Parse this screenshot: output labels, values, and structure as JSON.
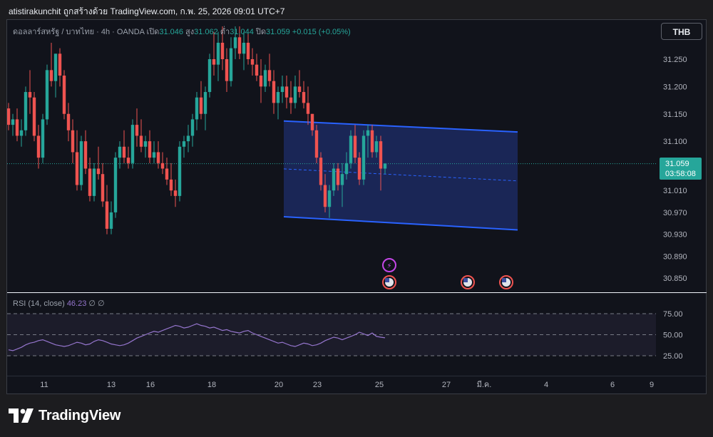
{
  "header": {
    "attribution": "atistirakunchit ถูกสร้างด้วย TradingView.com, ก.พ. 25, 2026 09:01 UTC+7"
  },
  "legend": {
    "symbol": "ดอลลาร์สหรัฐ / บาทไทย · 4h · OANDA",
    "open_label": "เปิด",
    "open": "31.046",
    "high_label": "สูง",
    "high": "31.062",
    "low_label": "ต่ำ",
    "low": "31.044",
    "close_label": "ปิด",
    "close": "31.059",
    "change": "+0.015 (+0.05%)"
  },
  "currency_button": "THB",
  "price_label": {
    "price": "31.059",
    "countdown": "03:58:08"
  },
  "rsi": {
    "name": "RSI (14, close)",
    "value": "46.23",
    "extra": "∅ ∅"
  },
  "branding": {
    "logo_text": "TradingView"
  },
  "colors": {
    "up": "#26a69a",
    "down": "#ef5350",
    "channel": "#2962ff",
    "rsi_line": "#9575cd",
    "background": "#11131b"
  },
  "chart_data": {
    "type": "candlestick",
    "y_axis": {
      "ticks": [
        "31.250",
        "31.200",
        "31.150",
        "31.100",
        "31.010",
        "30.970",
        "30.930",
        "30.890",
        "30.850"
      ],
      "range": [
        30.82,
        31.3
      ]
    },
    "x_axis": {
      "ticks": [
        "11",
        "13",
        "16",
        "18",
        "20",
        "23",
        "25",
        "27",
        "มี.ค.",
        "4",
        "6",
        "9"
      ]
    },
    "candles": [
      [
        31.16,
        31.17,
        31.12,
        31.13
      ],
      [
        31.13,
        31.15,
        31.11,
        31.14
      ],
      [
        31.14,
        31.16,
        31.1,
        31.11
      ],
      [
        31.11,
        31.14,
        31.09,
        31.12
      ],
      [
        31.12,
        31.2,
        31.11,
        31.19
      ],
      [
        31.19,
        31.23,
        31.15,
        31.18
      ],
      [
        31.18,
        31.19,
        31.1,
        31.11
      ],
      [
        31.11,
        31.13,
        31.05,
        31.07
      ],
      [
        31.07,
        31.15,
        31.06,
        31.14
      ],
      [
        31.14,
        31.24,
        31.13,
        31.23
      ],
      [
        31.23,
        31.28,
        31.2,
        31.21
      ],
      [
        31.21,
        31.26,
        31.18,
        31.26
      ],
      [
        31.26,
        31.27,
        31.2,
        31.22
      ],
      [
        31.22,
        31.23,
        31.14,
        31.15
      ],
      [
        31.15,
        31.17,
        31.1,
        31.12
      ],
      [
        31.12,
        31.14,
        31.06,
        31.08
      ],
      [
        31.08,
        31.12,
        31.01,
        31.02
      ],
      [
        31.02,
        31.11,
        31.01,
        31.1
      ],
      [
        31.1,
        31.12,
        31.04,
        31.05
      ],
      [
        31.05,
        31.07,
        30.99,
        31.0
      ],
      [
        31.0,
        31.06,
        30.99,
        31.05
      ],
      [
        31.05,
        31.09,
        31.03,
        31.04
      ],
      [
        31.04,
        31.06,
        30.98,
        30.99
      ],
      [
        30.99,
        31.02,
        30.93,
        30.94
      ],
      [
        30.94,
        30.99,
        30.93,
        30.97
      ],
      [
        30.97,
        31.08,
        30.96,
        31.07
      ],
      [
        31.07,
        31.1,
        31.05,
        31.09
      ],
      [
        31.09,
        31.12,
        31.06,
        31.07
      ],
      [
        31.07,
        31.09,
        31.05,
        31.06
      ],
      [
        31.06,
        31.14,
        31.05,
        31.13
      ],
      [
        31.13,
        31.16,
        31.09,
        31.11
      ],
      [
        31.11,
        31.14,
        31.08,
        31.09
      ],
      [
        31.09,
        31.11,
        31.07,
        31.1
      ],
      [
        31.1,
        31.12,
        31.06,
        31.07
      ],
      [
        31.07,
        31.1,
        31.06,
        31.08
      ],
      [
        31.08,
        31.1,
        31.05,
        31.06
      ],
      [
        31.06,
        31.08,
        31.04,
        31.05
      ],
      [
        31.05,
        31.07,
        31.02,
        31.03
      ],
      [
        31.03,
        31.06,
        31.0,
        31.01
      ],
      [
        31.01,
        31.03,
        30.98,
        31.0
      ],
      [
        31.0,
        31.1,
        30.99,
        31.09
      ],
      [
        31.09,
        31.11,
        31.07,
        31.1
      ],
      [
        31.1,
        31.13,
        31.08,
        31.11
      ],
      [
        31.11,
        31.15,
        31.09,
        31.14
      ],
      [
        31.14,
        31.19,
        31.12,
        31.18
      ],
      [
        31.18,
        31.21,
        31.14,
        31.15
      ],
      [
        31.15,
        31.2,
        31.12,
        31.19
      ],
      [
        31.19,
        31.26,
        31.18,
        31.25
      ],
      [
        31.25,
        31.3,
        31.22,
        31.24
      ],
      [
        31.24,
        31.3,
        31.21,
        31.28
      ],
      [
        31.28,
        31.31,
        31.23,
        31.25
      ],
      [
        31.25,
        31.27,
        31.19,
        31.21
      ],
      [
        31.21,
        31.29,
        31.2,
        31.27
      ],
      [
        31.27,
        31.31,
        31.25,
        31.29
      ],
      [
        31.29,
        31.31,
        31.25,
        31.26
      ],
      [
        31.26,
        31.3,
        31.23,
        31.28
      ],
      [
        31.28,
        31.3,
        31.24,
        31.25
      ],
      [
        31.25,
        31.27,
        31.22,
        31.24
      ],
      [
        31.24,
        31.26,
        31.21,
        31.22
      ],
      [
        31.22,
        31.25,
        31.17,
        31.2
      ],
      [
        31.2,
        31.24,
        31.19,
        31.23
      ],
      [
        31.23,
        31.26,
        31.2,
        31.21
      ],
      [
        31.21,
        31.23,
        31.15,
        31.17
      ],
      [
        31.17,
        31.2,
        31.14,
        31.19
      ],
      [
        31.19,
        31.22,
        31.17,
        31.2
      ],
      [
        31.2,
        31.22,
        31.16,
        31.18
      ],
      [
        31.18,
        31.21,
        31.15,
        31.17
      ],
      [
        31.17,
        31.22,
        31.16,
        31.2
      ],
      [
        31.2,
        31.23,
        31.18,
        31.19
      ],
      [
        31.19,
        31.21,
        31.16,
        31.17
      ],
      [
        31.17,
        31.2,
        31.13,
        31.15
      ],
      [
        31.15,
        31.15,
        31.11,
        31.12
      ],
      [
        31.12,
        31.13,
        31.06,
        31.07
      ],
      [
        31.07,
        31.08,
        31.01,
        31.02
      ],
      [
        31.02,
        31.04,
        30.97,
        30.98
      ],
      [
        30.98,
        31.02,
        30.96,
        31.01
      ],
      [
        31.01,
        31.06,
        31.0,
        31.05
      ],
      [
        31.05,
        31.06,
        31.01,
        31.02
      ],
      [
        31.02,
        31.06,
        30.98,
        31.04
      ],
      [
        31.04,
        31.08,
        31.03,
        31.06
      ],
      [
        31.06,
        31.12,
        31.05,
        31.11
      ],
      [
        31.11,
        31.13,
        31.06,
        31.07
      ],
      [
        31.07,
        31.08,
        31.02,
        31.03
      ],
      [
        31.03,
        31.12,
        31.02,
        31.11
      ],
      [
        31.11,
        31.13,
        31.07,
        31.12
      ],
      [
        31.12,
        31.13,
        31.07,
        31.08
      ],
      [
        31.08,
        31.11,
        31.07,
        31.1
      ],
      [
        31.1,
        31.11,
        31.01,
        31.05
      ],
      [
        31.05,
        31.06,
        31.04,
        31.059
      ]
    ],
    "channel": {
      "upper_start": 31.137,
      "upper_end": 31.117,
      "lower_start": 30.962,
      "lower_end": 30.938
    },
    "current_price": 31.059,
    "rsi_levels": [
      75,
      50,
      25
    ],
    "rsi_axis_ticks": [
      "75.00",
      "50.00",
      "25.00"
    ],
    "rsi_values": [
      32,
      31,
      33,
      35,
      38,
      40,
      41,
      43,
      44,
      42,
      40,
      38,
      37,
      36,
      37,
      39,
      41,
      40,
      38,
      39,
      42,
      44,
      43,
      41,
      39,
      38,
      37,
      38,
      40,
      43,
      46,
      48,
      50,
      52,
      54,
      53,
      55,
      57,
      59,
      61,
      60,
      58,
      59,
      61,
      63,
      61,
      60,
      58,
      59,
      57,
      55,
      56,
      54,
      53,
      52,
      54,
      55,
      52,
      50,
      48,
      46,
      44,
      42,
      40,
      41,
      39,
      37,
      36,
      38,
      40,
      39,
      37,
      38,
      40,
      43,
      45,
      47,
      46,
      44,
      46,
      48,
      50,
      53,
      51,
      49,
      52,
      48,
      47,
      46.23
    ]
  }
}
